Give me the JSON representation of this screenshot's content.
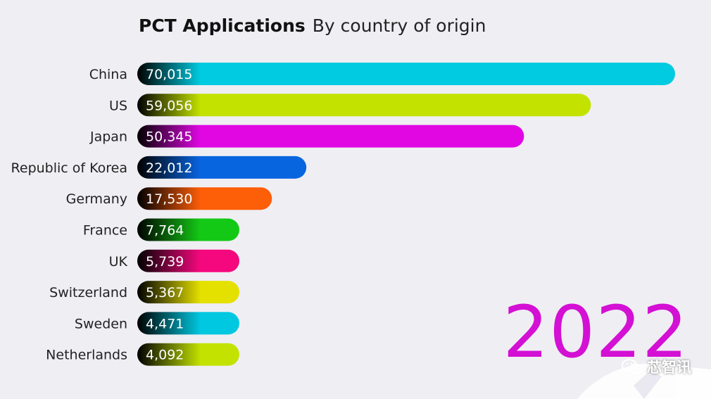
{
  "header": {
    "title": "PCT Applications",
    "subtitle": "By country of origin"
  },
  "year": "2022",
  "watermark": {
    "text": "芯智讯",
    "icon": "wechat-icon"
  },
  "chart_data": {
    "type": "bar",
    "orientation": "horizontal",
    "title": "PCT Applications",
    "subtitle": "By country of origin",
    "xlabel": "",
    "ylabel": "",
    "grid": false,
    "legend": "none",
    "xlim": [
      0,
      70015
    ],
    "categories": [
      "China",
      "US",
      "Japan",
      "Republic of Korea",
      "Germany",
      "France",
      "UK",
      "Switzerland",
      "Sweden",
      "Netherlands"
    ],
    "values": [
      70015,
      59056,
      50345,
      22012,
      17530,
      7764,
      5739,
      5367,
      4471,
      4092
    ],
    "value_labels": [
      "70,015",
      "59,056",
      "50,345",
      "22,012",
      "17,530",
      "7,764",
      "5,739",
      "5,367",
      "4,471",
      "4,092"
    ],
    "colors": [
      "#00cbe0",
      "#c3e200",
      "#e007e3",
      "#0865e0",
      "#fd5e08",
      "#14c916",
      "#f5087e",
      "#e4e000",
      "#00c8e0",
      "#c3e200"
    ]
  }
}
